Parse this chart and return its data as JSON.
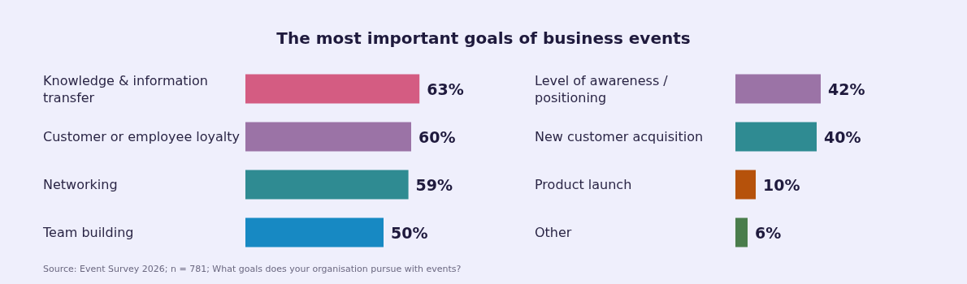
{
  "chart_data": [
    {
      "type": "bar",
      "orientation": "horizontal",
      "title": "The most important goals of business events",
      "categories": [
        "Knowledge & information transfer",
        "Customer or employee loyalty",
        "Networking",
        "Team building"
      ],
      "values": [
        63,
        60,
        59,
        50
      ],
      "colors": [
        "#d45c82",
        "#9b73a6",
        "#2f8b92",
        "#1789c3"
      ],
      "data_labels": true,
      "value_labels": [
        "63%",
        "60%",
        "59%",
        "50%"
      ],
      "annotations": [
        "Source: Event Survey 2026; n = 781; What goals does your organisation pursue with events?"
      ]
    },
    {
      "type": "bar",
      "orientation": "horizontal",
      "categories": [
        "Level of awareness / positioning",
        "New customer acquisition",
        "Product launch",
        "Other"
      ],
      "values": [
        42,
        40,
        10,
        6
      ],
      "colors": [
        "#9b73a6",
        "#2f8b92",
        "#b6520b",
        "#4a7d4c"
      ],
      "data_labels": true,
      "value_labels": [
        "42%",
        "40%",
        "10%",
        "6%"
      ]
    }
  ]
}
